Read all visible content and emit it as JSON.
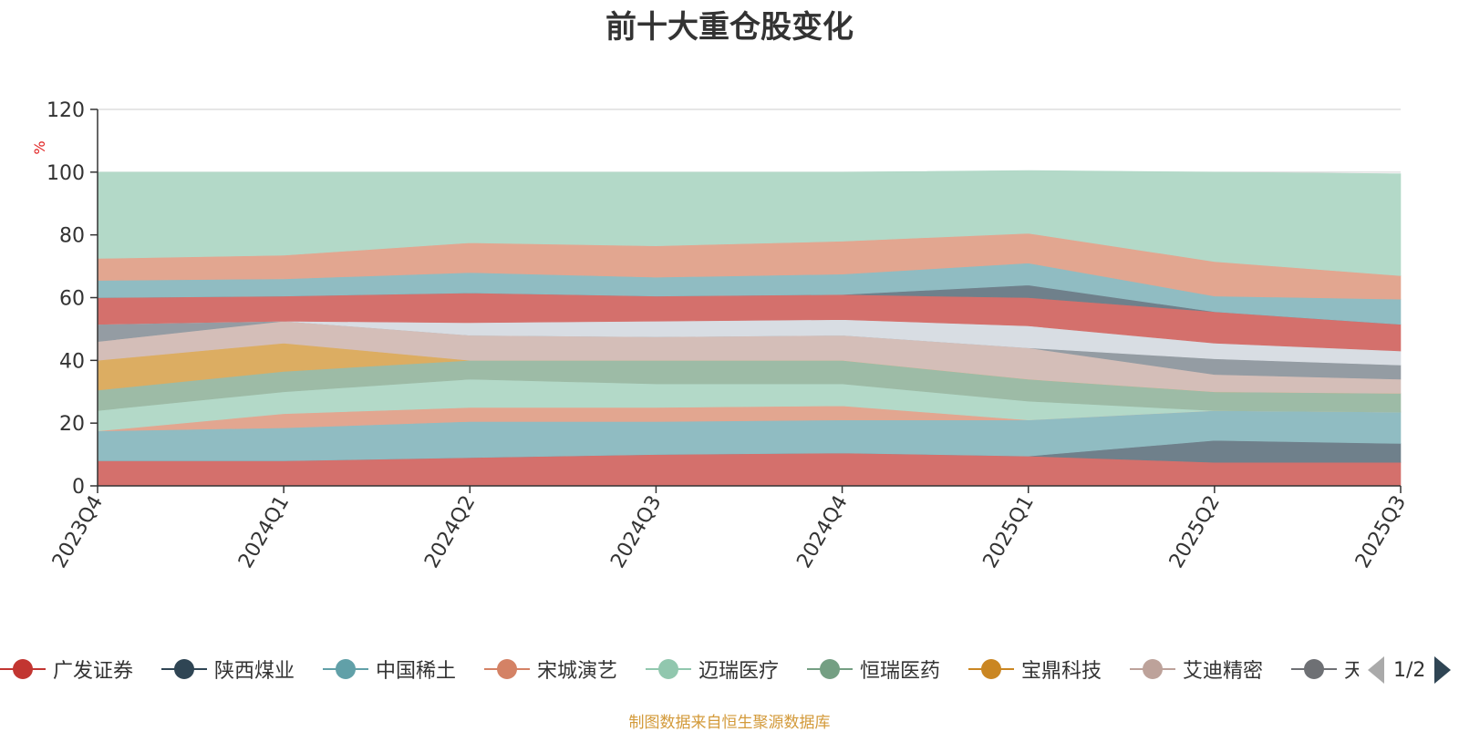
{
  "chart_data": {
    "type": "area",
    "title": "前十大重仓股变化",
    "ylabel": "%",
    "ylim": [
      0,
      120
    ],
    "yticks": [
      0,
      20,
      40,
      60,
      80,
      100,
      120
    ],
    "grid": true,
    "stacked": true,
    "categories": [
      "2023Q4",
      "2024Q1",
      "2024Q2",
      "2024Q3",
      "2024Q4",
      "2025Q1",
      "2025Q2",
      "2025Q3"
    ],
    "bands": [
      {
        "color": "#d4706c",
        "values": [
          8,
          8,
          9,
          10,
          10.5,
          9.5,
          7.5,
          7.5
        ]
      },
      {
        "color": "#6f808b",
        "values": [
          0,
          0,
          0,
          0,
          0,
          0,
          7,
          6
        ]
      },
      {
        "color": "#90bcc2",
        "values": [
          9.5,
          10.5,
          11.5,
          10.5,
          10.5,
          11.5,
          9.5,
          10
        ]
      },
      {
        "color": "#e2a690",
        "values": [
          0,
          4.5,
          4.5,
          4.5,
          4.5,
          0,
          0,
          0
        ]
      },
      {
        "color": "#b3d9c8",
        "values": [
          6.5,
          7,
          9,
          7.5,
          7,
          6,
          0,
          0
        ]
      },
      {
        "color": "#9dbba6",
        "values": [
          6.5,
          6.5,
          6,
          7.5,
          7.5,
          7,
          6,
          6
        ]
      },
      {
        "color": "#dcad62",
        "values": [
          9.5,
          9,
          0,
          0,
          0,
          0,
          0,
          0
        ]
      },
      {
        "color": "#d4beb8",
        "values": [
          6,
          7,
          8,
          7.5,
          8,
          10,
          5.5,
          4.5
        ]
      },
      {
        "color": "#949ca3",
        "values": [
          5.5,
          0,
          0,
          0,
          0,
          0,
          5,
          4.5
        ]
      },
      {
        "color": "#d8dde3",
        "values": [
          0,
          0,
          4,
          5,
          5,
          7,
          5,
          4.5
        ]
      },
      {
        "color": "#d4706c",
        "values": [
          8.5,
          8,
          9.5,
          8,
          8,
          9,
          10,
          8.5
        ]
      },
      {
        "color": "#6f808b",
        "values": [
          0,
          0,
          0,
          0,
          0,
          4,
          0,
          0
        ]
      },
      {
        "color": "#90bcc2",
        "values": [
          5.5,
          5.5,
          6.5,
          6,
          6.5,
          7,
          5,
          8
        ]
      },
      {
        "color": "#e2a690",
        "values": [
          7,
          7.5,
          9.5,
          10,
          10.5,
          9.5,
          11,
          7.5
        ]
      },
      {
        "color": "#b3d9c8",
        "values": [
          27.5,
          26.5,
          22.5,
          23.5,
          22,
          20,
          28.5,
          32.5
        ]
      }
    ],
    "legend": [
      {
        "name": "广发证券",
        "color": "#c23531"
      },
      {
        "name": "陕西煤业",
        "color": "#2f4554"
      },
      {
        "name": "中国稀土",
        "color": "#61a0a8"
      },
      {
        "name": "宋城演艺",
        "color": "#d48265"
      },
      {
        "name": "迈瑞医疗",
        "color": "#91c7ae"
      },
      {
        "name": "恒瑞医药",
        "color": "#749f83"
      },
      {
        "name": "宝鼎科技",
        "color": "#ca8622"
      },
      {
        "name": "艾迪精密",
        "color": "#bda29a"
      },
      {
        "name": "天",
        "color": "#6e7074"
      }
    ],
    "legend_page": "1/2",
    "source": "制图数据来自恒生聚源数据库"
  }
}
